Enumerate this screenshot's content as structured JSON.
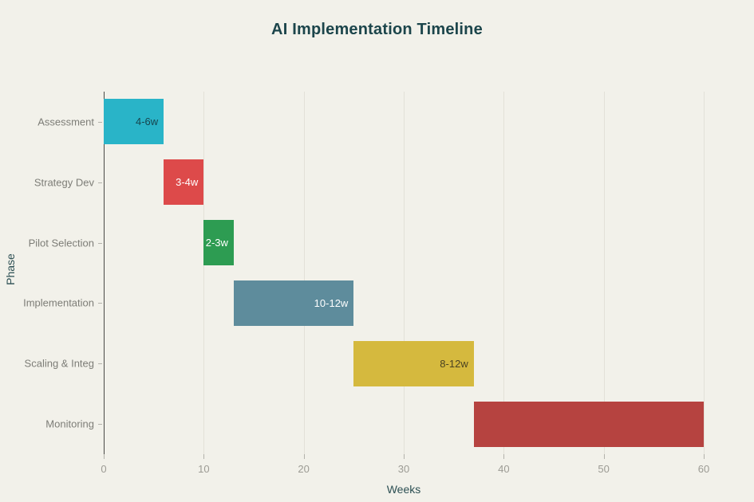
{
  "chart_data": {
    "type": "bar",
    "subtype": "gantt",
    "title": "AI Implementation Timeline",
    "xlabel": "Weeks",
    "ylabel": "Phase",
    "xlim": [
      0,
      60
    ],
    "xticks": [
      0,
      10,
      20,
      30,
      40,
      50,
      60
    ],
    "grid": true,
    "legend": "none",
    "categories": [
      "Assessment",
      "Strategy Dev",
      "Pilot Selection",
      "Implementation",
      "Scaling & Integ",
      "Monitoring"
    ],
    "series": [
      {
        "name": "Assessment",
        "start_week": 0,
        "end_week": 6,
        "duration_label": "4-6w",
        "bar_color": "#29b4c8",
        "label_color": "#17454e"
      },
      {
        "name": "Strategy Dev",
        "start_week": 6,
        "end_week": 10,
        "duration_label": "3-4w",
        "bar_color": "#dd4a4a",
        "label_color": "#ffffff"
      },
      {
        "name": "Pilot Selection",
        "start_week": 10,
        "end_week": 13,
        "duration_label": "2-3w",
        "bar_color": "#2d9c52",
        "label_color": "#ffffff"
      },
      {
        "name": "Implementation",
        "start_week": 13,
        "end_week": 25,
        "duration_label": "10-12w",
        "bar_color": "#5e8c9c",
        "label_color": "#ffffff"
      },
      {
        "name": "Scaling & Integ",
        "start_week": 25,
        "end_week": 37,
        "duration_label": "8-12w",
        "bar_color": "#d5b93e",
        "label_color": "#4a4222"
      },
      {
        "name": "Monitoring",
        "start_week": 37,
        "end_week": 60,
        "duration_label": "",
        "bar_color": "#b64340",
        "label_color": "#ffffff"
      }
    ]
  },
  "colors": {
    "background": "#f2f1ea",
    "title": "#1c454b",
    "axis_title": "#2c4f53",
    "category_label": "#7d7d77",
    "tick_label": "#9c9b94",
    "gridline": "#e3e1d8",
    "axis_line": "#4a4a46"
  }
}
